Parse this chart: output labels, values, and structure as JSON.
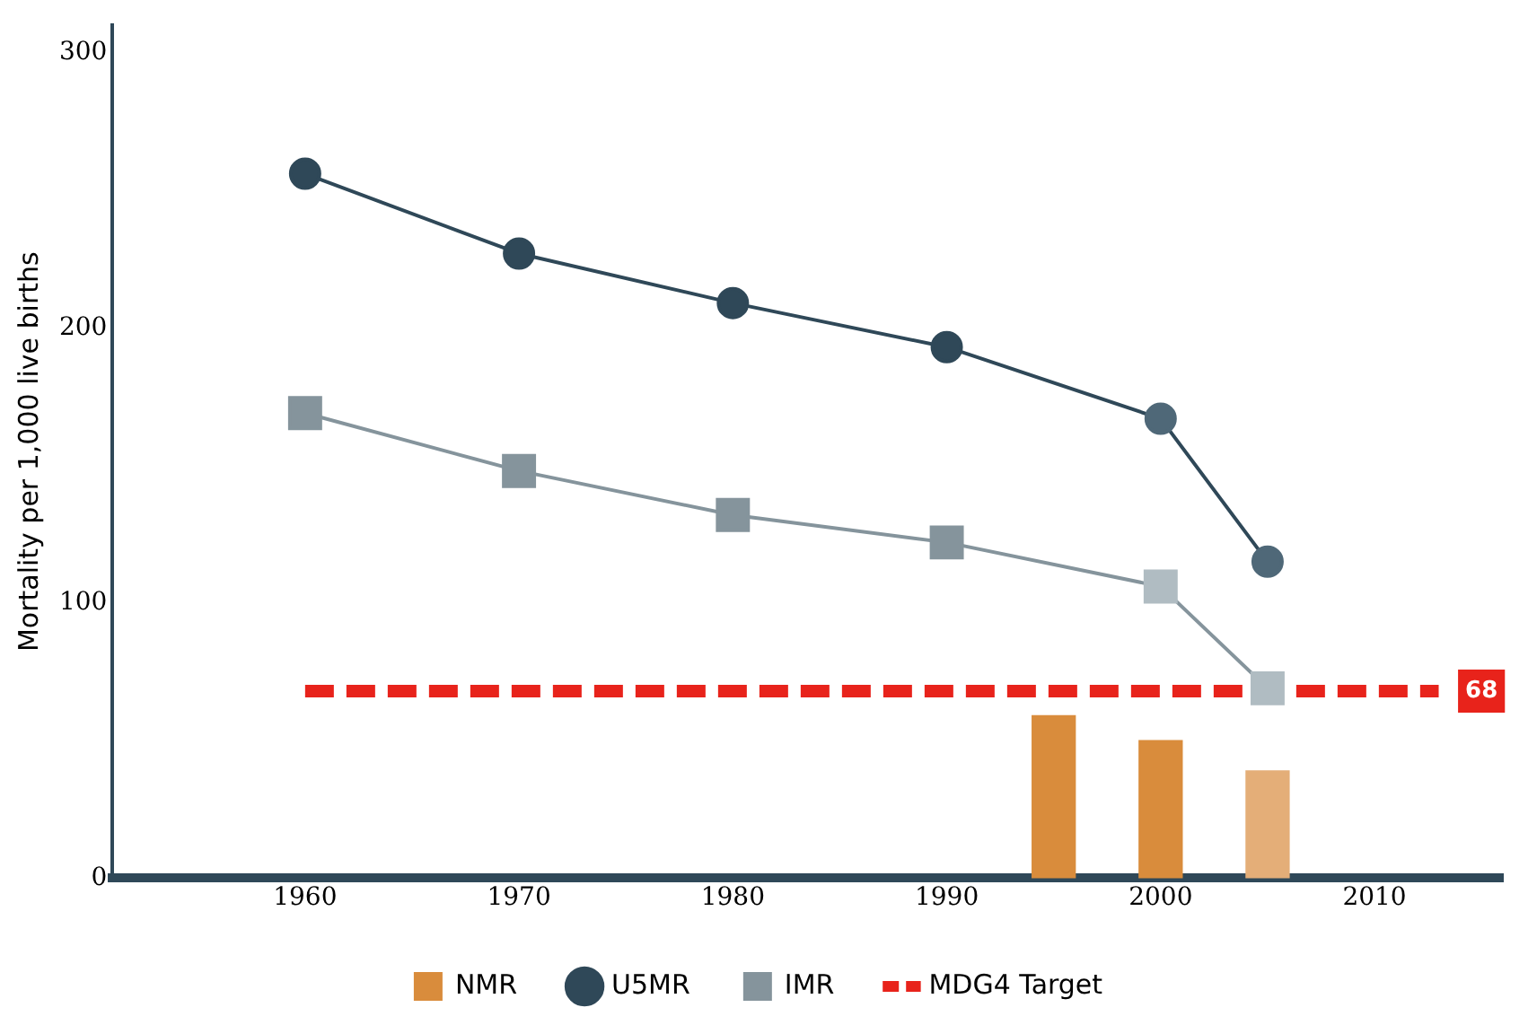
{
  "chart_data": {
    "type": "line",
    "ylabel": "Mortality per 1,000 live births",
    "xlim": [
      1951,
      2016
    ],
    "xticks": [
      1960,
      1970,
      1980,
      1990,
      2000,
      2010
    ],
    "ylim": [
      0,
      310
    ],
    "yticks": [
      0,
      100,
      200,
      300
    ],
    "grid": false,
    "legend": "bottom",
    "series": [
      {
        "name": "NMR",
        "type": "bar",
        "x": [
          1995,
          2000,
          2005
        ],
        "values": [
          59,
          50,
          39
        ],
        "colors": [
          "#d98c3c",
          "#d98c3c",
          "#e4ae78"
        ],
        "color": "#d98c3c"
      },
      {
        "name": "U5MR",
        "marker": "circle",
        "x": [
          1960,
          1970,
          1980,
          1990,
          2000,
          2005
        ],
        "values": [
          256,
          227,
          209,
          193,
          167,
          115
        ],
        "color": "#2f4858",
        "colors": [
          "#2f4858",
          "#2f4858",
          "#2f4858",
          "#2f4858",
          "#4f6878",
          "#4f6878"
        ]
      },
      {
        "name": "IMR",
        "marker": "square",
        "x": [
          1960,
          1970,
          1980,
          1990,
          2000,
          2005
        ],
        "values": [
          169,
          148,
          132,
          122,
          106,
          69
        ],
        "color": "#85949c",
        "colors": [
          "#85949c",
          "#85949c",
          "#85949c",
          "#85949c",
          "#b0bcc2",
          "#b0bcc2"
        ]
      },
      {
        "name": "MDG4 Target",
        "marker": "none",
        "line_style": "dashed",
        "x": [
          1960,
          2013
        ],
        "values": [
          68,
          68
        ],
        "color": "#e8231b"
      }
    ],
    "annotations": [
      {
        "text": "68",
        "x": 2015,
        "y": 68
      }
    ]
  }
}
